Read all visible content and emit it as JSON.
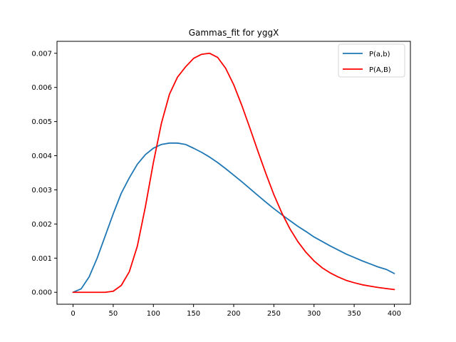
{
  "chart_data": {
    "type": "line",
    "title": "Gammas_fit for yggX",
    "xlabel": "",
    "ylabel": "",
    "xlim": [
      -20,
      420
    ],
    "ylim": [
      -0.00035,
      0.00735
    ],
    "xticks": [
      0,
      50,
      100,
      150,
      200,
      250,
      300,
      350,
      400
    ],
    "xtick_labels": [
      "0",
      "50",
      "100",
      "150",
      "200",
      "250",
      "300",
      "350",
      "400"
    ],
    "yticks": [
      0.0,
      0.001,
      0.002,
      0.003,
      0.004,
      0.005,
      0.006,
      0.007
    ],
    "ytick_labels": [
      "0.000",
      "0.001",
      "0.002",
      "0.003",
      "0.004",
      "0.005",
      "0.006",
      "0.007"
    ],
    "grid": false,
    "legend_position": "top-right",
    "series": [
      {
        "name": "P(a,b)",
        "color": "#1f77b4",
        "x": [
          0,
          10,
          20,
          30,
          40,
          50,
          60,
          70,
          80,
          90,
          100,
          110,
          120,
          130,
          140,
          150,
          160,
          170,
          180,
          190,
          200,
          210,
          220,
          230,
          240,
          250,
          260,
          270,
          280,
          290,
          300,
          310,
          320,
          330,
          340,
          350,
          360,
          370,
          380,
          390,
          400
        ],
        "y": [
          0.0,
          0.0001,
          0.00045,
          0.001,
          0.00165,
          0.0023,
          0.0029,
          0.00335,
          0.00375,
          0.00403,
          0.00422,
          0.00433,
          0.00437,
          0.00437,
          0.00433,
          0.00422,
          0.0041,
          0.00396,
          0.0038,
          0.00362,
          0.00343,
          0.00324,
          0.00304,
          0.00284,
          0.00264,
          0.00245,
          0.00227,
          0.0021,
          0.00193,
          0.00178,
          0.00162,
          0.00149,
          0.00136,
          0.00124,
          0.00112,
          0.00102,
          0.00092,
          0.00083,
          0.00074,
          0.00067,
          0.00055
        ]
      },
      {
        "name": "P(A,B)",
        "color": "#ff0000",
        "x": [
          0,
          10,
          20,
          30,
          40,
          50,
          60,
          70,
          80,
          90,
          100,
          110,
          120,
          130,
          140,
          150,
          160,
          170,
          180,
          190,
          200,
          210,
          220,
          230,
          240,
          250,
          260,
          270,
          280,
          290,
          300,
          310,
          320,
          330,
          340,
          350,
          360,
          370,
          380,
          390,
          400
        ],
        "y": [
          0.0,
          0.0,
          0.0,
          0.0,
          0.0,
          3e-05,
          0.0002,
          0.0006,
          0.00135,
          0.0025,
          0.0038,
          0.00495,
          0.0058,
          0.0063,
          0.0066,
          0.00685,
          0.00697,
          0.007,
          0.00688,
          0.00656,
          0.00608,
          0.00548,
          0.00482,
          0.00414,
          0.00348,
          0.00286,
          0.00232,
          0.00186,
          0.00148,
          0.00117,
          0.00092,
          0.00072,
          0.00057,
          0.00045,
          0.00035,
          0.00028,
          0.00022,
          0.00018,
          0.00014,
          0.00011,
          8e-05
        ]
      }
    ]
  }
}
